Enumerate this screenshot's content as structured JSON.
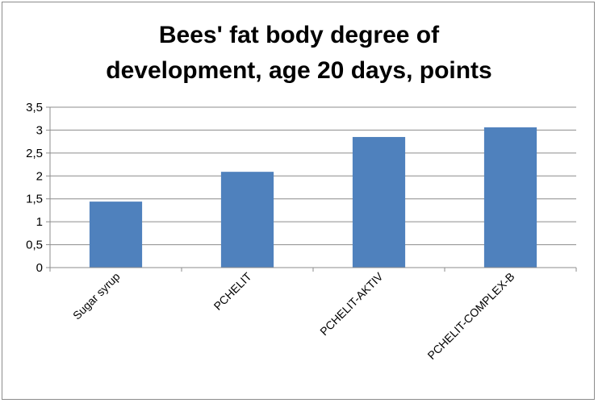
{
  "chart_data": {
    "type": "bar",
    "title_lines": [
      "Bees' fat body degree of",
      "development, age 20 days, points"
    ],
    "categories": [
      "Sugar syrup",
      "PCHELIT",
      "PCHELIT-AKTIV",
      "PCHELIT-COMPLEX-B"
    ],
    "values": [
      1.44,
      2.09,
      2.85,
      3.06
    ],
    "ylim": [
      0,
      3.5
    ],
    "yticks": [
      "0",
      "0,5",
      "1",
      "1,5",
      "2",
      "2,5",
      "3",
      "3,5"
    ],
    "xlabel": "",
    "ylabel": "",
    "grid": true,
    "legend": "none",
    "bar_color": "#4f81bd"
  }
}
